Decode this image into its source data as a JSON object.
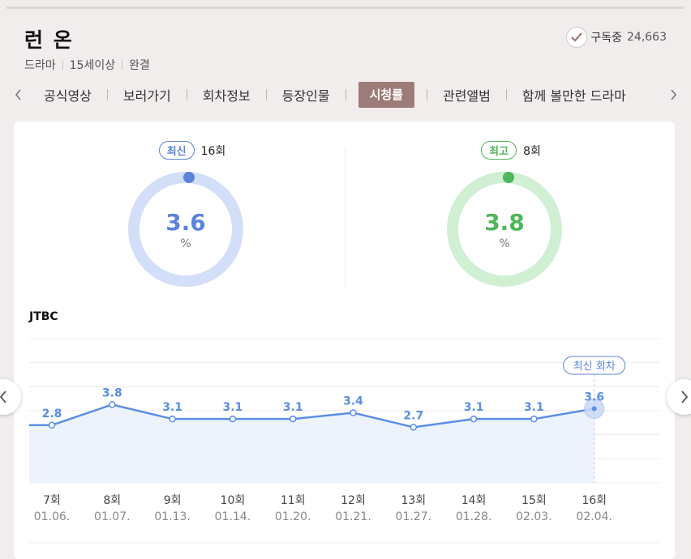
{
  "show": {
    "title": "런 온",
    "genre": "드라마",
    "rating": "15세이상",
    "status": "완결"
  },
  "subscribe": {
    "label": "구독중",
    "count": "24,663"
  },
  "tabs": [
    {
      "label": "공식영상",
      "active": false
    },
    {
      "label": "보러가기",
      "active": false
    },
    {
      "label": "회차정보",
      "active": false
    },
    {
      "label": "등장인물",
      "active": false
    },
    {
      "label": "시청률",
      "active": true
    },
    {
      "label": "관련앨범",
      "active": false
    },
    {
      "label": "함께 볼만한 드라마",
      "active": false
    }
  ],
  "summary": {
    "latest": {
      "badge": "최신",
      "episode": "16회",
      "value": "3.6",
      "unit": "%",
      "percent": 3.6,
      "color": "#5b84d9",
      "ring_color": "#d3def8"
    },
    "highest": {
      "badge": "최고",
      "episode": "8회",
      "value": "3.8",
      "unit": "%",
      "percent": 3.8,
      "color": "#4fb65a",
      "ring_color": "#d0efd3"
    }
  },
  "network": "JTBC",
  "chart_data": {
    "type": "line",
    "x": [
      "7회",
      "8회",
      "9회",
      "10회",
      "11회",
      "12회",
      "13회",
      "14회",
      "15회",
      "16회"
    ],
    "dates": [
      "01.06.",
      "01.07.",
      "01.13.",
      "01.14.",
      "01.20.",
      "01.21.",
      "01.27.",
      "01.28.",
      "02.03.",
      "02.04."
    ],
    "series": [
      {
        "values": [
          2.8,
          3.8,
          3.1,
          3.1,
          3.1,
          3.4,
          2.7,
          3.1,
          3.1,
          3.6
        ]
      }
    ],
    "latest_label": "최신 회차",
    "line_color": "#5b8ee6",
    "fill_color": "#edf3fd"
  }
}
